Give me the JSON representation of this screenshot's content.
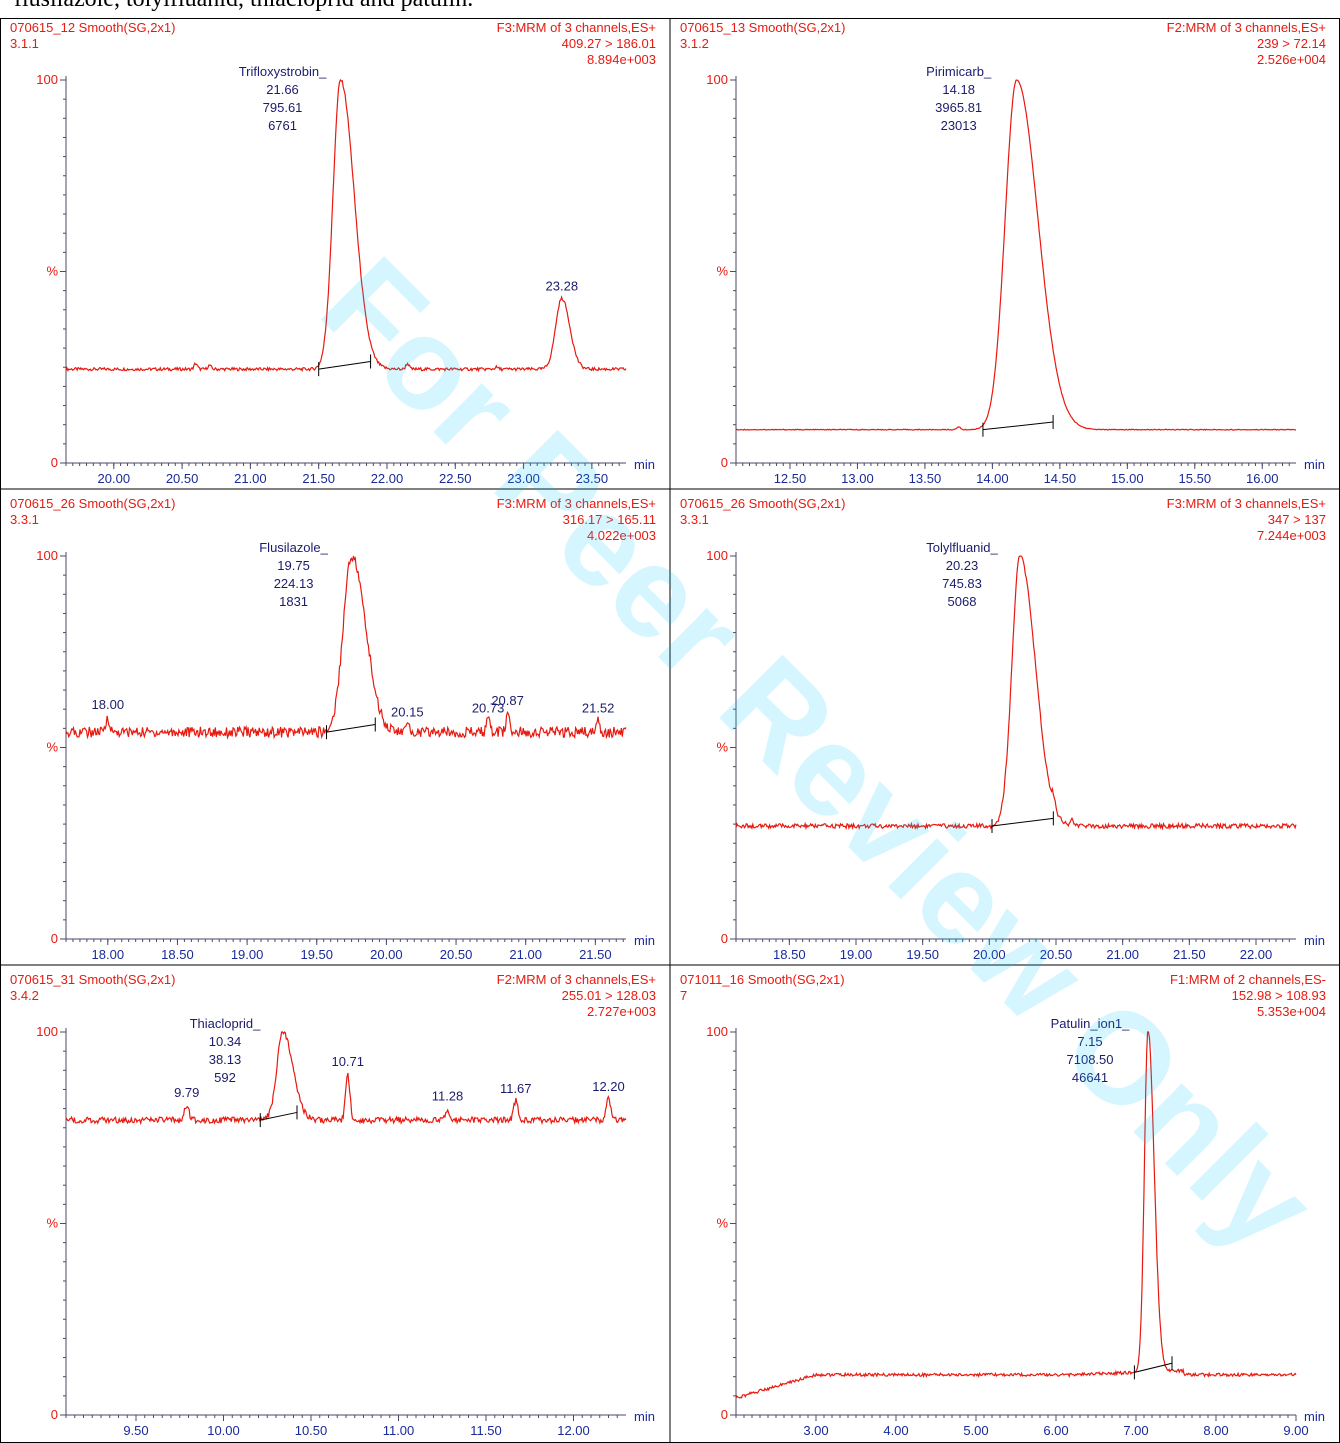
{
  "caption": "flusilazole, tolylfluanid, thiacloprid and patulin.",
  "watermark": "For Peer Review Only",
  "colors": {
    "trace": "#e8190f",
    "header_text": "#e8190f",
    "label_text": "#1c1c6e",
    "axis": "#4a4a6a",
    "border": "#000000",
    "watermark": "#00c8ff"
  },
  "chart_data": [
    {
      "type": "line",
      "header": {
        "sample": "070615_12  Smooth(SG,2x1)",
        "function": "F3:MRM of 3 channels,ES+",
        "id": "3.1.1",
        "transition": "409.27 > 186.01",
        "intensity": "8.894e+003"
      },
      "xlim": [
        19.65,
        23.75
      ],
      "ylim": [
        0,
        100
      ],
      "xticks": [
        "20.00",
        "20.50",
        "21.00",
        "21.50",
        "22.00",
        "22.50",
        "23.00",
        "23.50"
      ],
      "yticks": [
        "0",
        "%",
        "100"
      ],
      "xunit": "min",
      "baseline": 24.5,
      "noise": 0.4,
      "peaks": [
        {
          "rt": 21.66,
          "height": 100,
          "width": 0.055,
          "tail": 0.1
        },
        {
          "rt": 23.28,
          "height": 43,
          "width": 0.045,
          "tail": 0.03
        }
      ],
      "noise_peaks": [
        [
          20.6,
          26
        ],
        [
          20.7,
          25.5
        ],
        [
          22.15,
          26
        ],
        [
          22.8,
          25
        ]
      ],
      "integration": [
        21.5,
        21.88
      ],
      "annotations": [
        {
          "x": 21.66,
          "y": 100,
          "lines": [
            "Trifloxystrobin_",
            "21.66",
            "795.61",
            "6761"
          ]
        },
        {
          "x": 23.28,
          "y": 43,
          "lines": [
            "23.28"
          ]
        }
      ]
    },
    {
      "type": "line",
      "header": {
        "sample": "070615_13  Smooth(SG,2x1)",
        "function": "F2:MRM of 3 channels,ES+",
        "id": "3.1.2",
        "transition": "239 > 72.14",
        "intensity": "2.526e+004"
      },
      "xlim": [
        12.1,
        16.25
      ],
      "ylim": [
        0,
        100
      ],
      "xticks": [
        "12.50",
        "13.00",
        "13.50",
        "14.00",
        "14.50",
        "15.00",
        "15.50",
        "16.00"
      ],
      "yticks": [
        "0",
        "%",
        "100"
      ],
      "xunit": "min",
      "baseline": 8.7,
      "noise": 0.1,
      "peaks": [
        {
          "rt": 14.18,
          "height": 100,
          "width": 0.085,
          "tail": 0.16
        }
      ],
      "noise_peaks": [
        [
          13.75,
          9.5
        ]
      ],
      "integration": [
        13.93,
        14.45
      ],
      "annotations": [
        {
          "x": 14.18,
          "y": 100,
          "lines": [
            "Pirimicarb_",
            "14.18",
            "3965.81",
            "23013"
          ]
        }
      ]
    },
    {
      "type": "line",
      "header": {
        "sample": "070615_26  Smooth(SG,2x1)",
        "function": "F3:MRM of 3 channels,ES+",
        "id": "3.3.1",
        "transition": "316.17 > 165.11",
        "intensity": "4.022e+003"
      },
      "xlim": [
        17.7,
        21.72
      ],
      "ylim": [
        0,
        100
      ],
      "xticks": [
        "18.00",
        "18.50",
        "19.00",
        "19.50",
        "20.00",
        "20.50",
        "21.00",
        "21.50"
      ],
      "yticks": [
        "0",
        "%",
        "100"
      ],
      "xunit": "min",
      "baseline": 54,
      "noise": 1.4,
      "peaks": [
        {
          "rt": 19.75,
          "height": 100,
          "width": 0.06,
          "tail": 0.09
        }
      ],
      "noise_peaks": [
        [
          18.0,
          58
        ],
        [
          20.15,
          56
        ],
        [
          20.73,
          57
        ],
        [
          20.87,
          59
        ],
        [
          21.52,
          57
        ]
      ],
      "integration": [
        19.57,
        19.92
      ],
      "annotations": [
        {
          "x": 19.75,
          "y": 100,
          "lines": [
            "Flusilazole_",
            "19.75",
            "224.13",
            "1831"
          ]
        },
        {
          "x": 18.0,
          "y": 58,
          "lines": [
            "18.00"
          ]
        },
        {
          "x": 20.15,
          "y": 56,
          "lines": [
            "20.15"
          ]
        },
        {
          "x": 20.73,
          "y": 57,
          "lines": [
            "20.73"
          ]
        },
        {
          "x": 20.87,
          "y": 59,
          "lines": [
            "20.87"
          ]
        },
        {
          "x": 21.52,
          "y": 57,
          "lines": [
            "21.52"
          ]
        }
      ]
    },
    {
      "type": "line",
      "header": {
        "sample": "070615_26  Smooth(SG,2x1)",
        "function": "F3:MRM of 3 channels,ES+",
        "id": "3.3.1",
        "transition": "347 > 137",
        "intensity": "7.244e+003"
      },
      "xlim": [
        18.1,
        22.3
      ],
      "ylim": [
        0,
        100
      ],
      "xticks": [
        "18.50",
        "19.00",
        "19.50",
        "20.00",
        "20.50",
        "21.00",
        "21.50",
        "22.00"
      ],
      "yticks": [
        "0",
        "%",
        "100"
      ],
      "xunit": "min",
      "baseline": 29.5,
      "noise": 0.6,
      "peaks": [
        {
          "rt": 20.23,
          "height": 100,
          "width": 0.06,
          "tail": 0.12
        }
      ],
      "noise_peaks": [
        [
          20.48,
          32
        ],
        [
          20.62,
          31
        ]
      ],
      "integration": [
        20.02,
        20.48
      ],
      "annotations": [
        {
          "x": 20.23,
          "y": 100,
          "lines": [
            "Tolylfluanid_",
            "20.23",
            "745.83",
            "5068"
          ]
        }
      ]
    },
    {
      "type": "line",
      "header": {
        "sample": "070615_31  Smooth(SG,2x1)",
        "function": "F2:MRM of 3 channels,ES+",
        "id": "3.4.2",
        "transition": "255.01 > 128.03",
        "intensity": "2.727e+003"
      },
      "xlim": [
        9.1,
        12.3
      ],
      "ylim": [
        0,
        100
      ],
      "xticks": [
        "9.50",
        "10.00",
        "10.50",
        "11.00",
        "11.50",
        "12.00"
      ],
      "yticks": [
        "0",
        "%",
        "100"
      ],
      "xunit": "min",
      "baseline": 77,
      "noise": 0.8,
      "peaks": [
        {
          "rt": 10.34,
          "height": 100,
          "width": 0.035,
          "tail": 0.05
        }
      ],
      "noise_peaks": [
        [
          9.79,
          81
        ],
        [
          10.71,
          89
        ],
        [
          11.28,
          80
        ],
        [
          11.67,
          82
        ],
        [
          12.2,
          82.5
        ]
      ],
      "integration": [
        10.21,
        10.42
      ],
      "annotations": [
        {
          "x": 10.34,
          "y": 100,
          "lines": [
            "Thiacloprid_",
            "10.34",
            "38.13",
            "592"
          ]
        },
        {
          "x": 9.79,
          "y": 81,
          "lines": [
            "9.79"
          ]
        },
        {
          "x": 10.71,
          "y": 89,
          "lines": [
            "10.71"
          ]
        },
        {
          "x": 11.28,
          "y": 80,
          "lines": [
            "11.28"
          ]
        },
        {
          "x": 11.67,
          "y": 82,
          "lines": [
            "11.67"
          ]
        },
        {
          "x": 12.2,
          "y": 82.5,
          "lines": [
            "12.20"
          ]
        }
      ]
    },
    {
      "type": "line",
      "header": {
        "sample": "071011_16  Smooth(SG,2x1)",
        "function": "F1:MRM of 2 channels,ES-",
        "id": "7",
        "transition": "152.98 > 108.93",
        "intensity": "5.353e+004"
      },
      "xlim": [
        2.0,
        9.0
      ],
      "ylim": [
        0,
        100
      ],
      "xticks": [
        "3.00",
        "4.00",
        "5.00",
        "6.00",
        "7.00",
        "8.00",
        "9.00"
      ],
      "yticks": [
        "0",
        "%",
        "100"
      ],
      "xunit": "min",
      "baseline": 10.5,
      "noise": 0.4,
      "peaks": [
        {
          "rt": 7.15,
          "height": 100,
          "width": 0.045,
          "tail": 0.07
        }
      ],
      "noise_peaks": [],
      "integration": [
        6.98,
        7.45
      ],
      "annotations": [
        {
          "x": 7.15,
          "y": 100,
          "lines": [
            "Patulin_ion1_",
            "7.15",
            "7108.50",
            "46641"
          ]
        }
      ]
    }
  ]
}
